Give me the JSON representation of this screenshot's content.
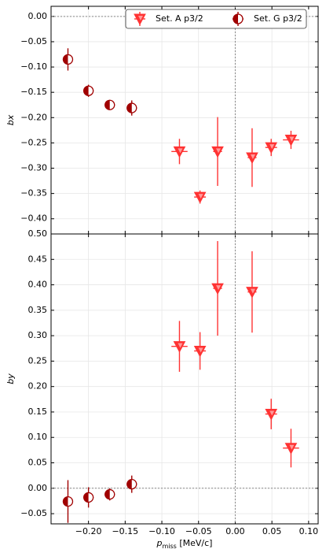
{
  "chart_data": [
    {
      "type": "errorbar",
      "ylabel": "bx",
      "sharex": true,
      "legend": "upper right",
      "grid": true,
      "zero_lines": true,
      "ylim": [
        -0.43,
        0.02
      ],
      "yticks": [
        {
          "value": 0,
          "label": "0.00"
        },
        {
          "value": -0.05,
          "label": "−0.05"
        },
        {
          "value": -0.1,
          "label": "−0.10"
        },
        {
          "value": -0.15,
          "label": "−0.15"
        },
        {
          "value": -0.2,
          "label": "−0.20"
        },
        {
          "value": -0.25,
          "label": "−0.25"
        },
        {
          "value": -0.3,
          "label": "−0.30"
        },
        {
          "value": -0.35,
          "label": "−0.35"
        },
        {
          "value": -0.4,
          "label": "−0.40"
        }
      ],
      "series": [
        {
          "name": "Set. A p3/2",
          "marker": "triangle",
          "color": "#ff3333",
          "x": [
            -0.076,
            -0.048,
            -0.024,
            0.023,
            0.049,
            0.076
          ],
          "xerr": [
            0.011,
            0.008,
            0.006,
            0.006,
            0.008,
            0.011
          ],
          "values": [
            -0.267,
            -0.357,
            -0.267,
            -0.279,
            -0.259,
            -0.244
          ],
          "yerr": [
            0.025,
            0.013,
            0.068,
            0.058,
            0.017,
            0.018
          ]
        },
        {
          "name": "Set. G p3/2",
          "marker": "half-circle",
          "color": "#a00000",
          "x": [
            -0.228,
            -0.2,
            -0.171,
            -0.141
          ],
          "xerr": [
            0.007,
            0.007,
            0.007,
            0.007
          ],
          "values": [
            -0.085,
            -0.147,
            -0.175,
            -0.181
          ],
          "yerr": [
            0.022,
            0.012,
            0.01,
            0.015
          ]
        }
      ]
    },
    {
      "type": "errorbar",
      "xlabel": {
        "main": "p",
        "sub": "miss",
        "rest": " [MeV/c]"
      },
      "ylabel": "by",
      "grid": true,
      "zero_lines": true,
      "xlim": [
        -0.251,
        0.113
      ],
      "xticks": [
        {
          "value": -0.2,
          "label": "−0.20"
        },
        {
          "value": -0.15,
          "label": "−0.15"
        },
        {
          "value": -0.1,
          "label": "−0.10"
        },
        {
          "value": -0.05,
          "label": "−0.05"
        },
        {
          "value": 0,
          "label": "0.00"
        },
        {
          "value": 0.05,
          "label": "0.05"
        },
        {
          "value": 0.1,
          "label": "0.10"
        }
      ],
      "ylim": [
        -0.07,
        0.5
      ],
      "yticks": [
        {
          "value": -0.05,
          "label": "−0.05"
        },
        {
          "value": 0,
          "label": "0.00"
        },
        {
          "value": 0.05,
          "label": "0.05"
        },
        {
          "value": 0.1,
          "label": "0.10"
        },
        {
          "value": 0.15,
          "label": "0.15"
        },
        {
          "value": 0.2,
          "label": "0.20"
        },
        {
          "value": 0.25,
          "label": "0.25"
        },
        {
          "value": 0.3,
          "label": "0.30"
        },
        {
          "value": 0.35,
          "label": "0.35"
        },
        {
          "value": 0.4,
          "label": "0.40"
        },
        {
          "value": 0.45,
          "label": "0.45"
        },
        {
          "value": 0.5,
          "label": "0.50"
        }
      ],
      "series": [
        {
          "marker": "triangle",
          "color": "#ff3333",
          "x": [
            -0.076,
            -0.048,
            -0.024,
            0.023,
            0.049,
            0.076
          ],
          "xerr": [
            0.011,
            0.008,
            0.006,
            0.006,
            0.008,
            0.011
          ],
          "values": [
            0.279,
            0.27,
            0.393,
            0.386,
            0.146,
            0.079
          ],
          "yerr": [
            0.05,
            0.037,
            0.093,
            0.08,
            0.03,
            0.038
          ]
        },
        {
          "marker": "half-circle",
          "color": "#a00000",
          "x": [
            -0.228,
            -0.2,
            -0.171,
            -0.141
          ],
          "xerr": [
            0.007,
            0.007,
            0.007,
            0.007
          ],
          "values": [
            -0.026,
            -0.018,
            -0.012,
            0.008
          ],
          "yerr": [
            0.042,
            0.02,
            0.012,
            0.017
          ]
        }
      ]
    }
  ]
}
